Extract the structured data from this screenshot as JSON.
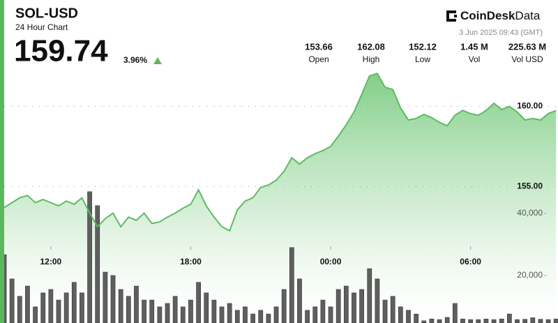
{
  "header": {
    "title": "SOL-USD",
    "subtitle": "24 Hour Chart",
    "price": "159.74",
    "change": "3.96%",
    "brand": [
      "CoinDesk",
      "Data"
    ],
    "timestamp": "3 Jun 2025 09:43 (GMT)",
    "stats": [
      {
        "value": "153.66",
        "label": "Open"
      },
      {
        "value": "162.08",
        "label": "High"
      },
      {
        "value": "152.12",
        "label": "Low"
      },
      {
        "value": "1.45 M",
        "label": "Vol"
      },
      {
        "value": "225.63 M",
        "label": "Vol USD"
      }
    ]
  },
  "chart_data": {
    "type": "line",
    "x": [
      "10:00",
      "10:20",
      "10:40",
      "11:00",
      "11:20",
      "11:40",
      "12:00",
      "12:20",
      "12:40",
      "13:00",
      "13:20",
      "13:40",
      "14:00",
      "14:20",
      "14:40",
      "15:00",
      "15:20",
      "15:40",
      "16:00",
      "16:20",
      "16:40",
      "17:00",
      "17:20",
      "17:40",
      "18:00",
      "18:20",
      "18:40",
      "19:00",
      "19:20",
      "19:40",
      "20:00",
      "20:20",
      "20:40",
      "21:00",
      "21:20",
      "21:40",
      "22:00",
      "22:20",
      "22:40",
      "23:00",
      "23:20",
      "23:40",
      "00:00",
      "00:20",
      "00:40",
      "01:00",
      "01:20",
      "01:40",
      "02:00",
      "02:20",
      "02:40",
      "03:00",
      "03:20",
      "03:40",
      "04:00",
      "04:20",
      "04:40",
      "05:00",
      "05:20",
      "05:40",
      "06:00",
      "06:20",
      "06:40",
      "07:00",
      "07:20",
      "07:40",
      "08:00",
      "08:20",
      "08:40",
      "09:00",
      "09:20",
      "09:40"
    ],
    "xlim": [
      "10:00",
      "09:45"
    ],
    "xticks": [
      "12:00",
      "18:00",
      "00:00",
      "06:00"
    ],
    "ylim": [
      146.5,
      162.5
    ],
    "yticks": [
      {
        "value": 155,
        "label": "155.00"
      },
      {
        "value": 160,
        "label": "160.00"
      }
    ],
    "y2lim": [
      4700,
      87400
    ],
    "y2ticks": [
      {
        "value": 20000,
        "label": "20,000"
      },
      {
        "value": 40000,
        "label": "40,000"
      }
    ],
    "grid": true,
    "series": [
      {
        "color": "#5dbb63",
        "values": [
          153.7,
          154.0,
          154.3,
          154.45,
          154.0,
          154.2,
          154.0,
          153.8,
          154.1,
          153.9,
          154.3,
          153.35,
          152.5,
          153.0,
          153.35,
          152.5,
          153.1,
          152.9,
          153.35,
          152.7,
          152.8,
          153.1,
          153.35,
          153.65,
          153.9,
          154.8,
          153.8,
          153.1,
          152.5,
          152.25,
          153.55,
          154.1,
          154.3,
          154.95,
          155.1,
          155.4,
          155.95,
          156.8,
          156.4,
          156.8,
          157.05,
          157.25,
          157.5,
          158.15,
          158.85,
          159.65,
          160.75,
          161.9,
          162.05,
          161.2,
          161.05,
          159.9,
          159.15,
          159.25,
          159.5,
          159.3,
          159.0,
          158.8,
          159.45,
          159.75,
          159.55,
          159.45,
          159.75,
          160.2,
          159.8,
          160.0,
          159.65,
          159.15,
          159.25,
          159.15,
          159.55,
          159.74
        ]
      },
      {
        "type": "bar",
        "axis": "y2",
        "color": "#5f5f5f",
        "values": [
          26700,
          18900,
          13300,
          16600,
          9900,
          14400,
          15500,
          12100,
          14400,
          17800,
          14400,
          47000,
          42500,
          21100,
          20000,
          15500,
          13300,
          16600,
          12100,
          12100,
          9900,
          11000,
          13300,
          9900,
          12100,
          17800,
          14400,
          12100,
          9900,
          11000,
          8800,
          9900,
          7600,
          8800,
          7600,
          9900,
          15500,
          29000,
          18900,
          8800,
          9900,
          12100,
          9900,
          15500,
          16600,
          14400,
          15500,
          22200,
          18900,
          12100,
          13300,
          9900,
          8800,
          7600,
          5400,
          6000,
          5800,
          6500,
          11000,
          6000,
          5800,
          5800,
          6000,
          5800,
          6000,
          7600,
          5800,
          5900,
          6400,
          5900,
          5800,
          6000
        ]
      }
    ]
  }
}
